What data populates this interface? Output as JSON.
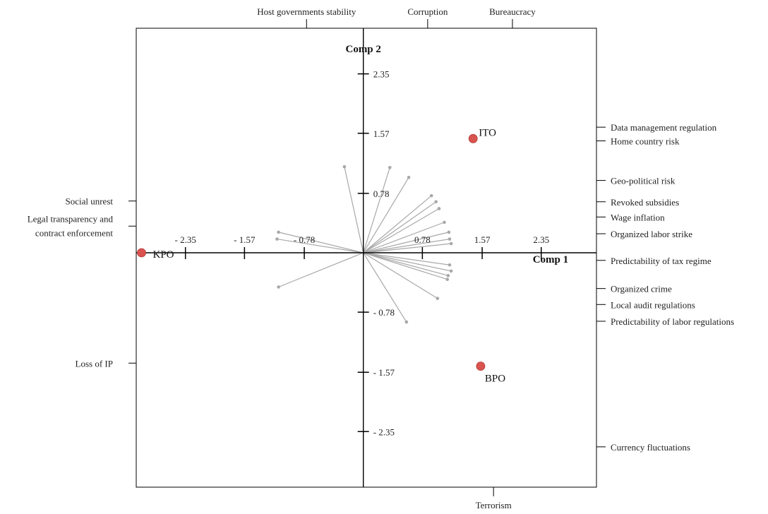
{
  "chart_data": {
    "type": "scatter",
    "xlabel": "Comp 1",
    "ylabel": "Comp 2",
    "xlim": [
      -3.0,
      3.08
    ],
    "ylim": [
      -3.08,
      2.95
    ],
    "x_ticks": [
      {
        "value": -2.35,
        "label": "- 2.35"
      },
      {
        "value": -1.57,
        "label": "- 1.57"
      },
      {
        "value": -0.78,
        "label": "- 0.78"
      },
      {
        "value": 0.78,
        "label": "0.78"
      },
      {
        "value": 1.57,
        "label": "1.57"
      },
      {
        "value": 2.35,
        "label": "2.35"
      }
    ],
    "y_ticks": [
      {
        "value": 2.35,
        "label": "2.35"
      },
      {
        "value": 1.57,
        "label": "1.57"
      },
      {
        "value": 0.78,
        "label": "0.78"
      },
      {
        "value": -0.78,
        "label": "- 0.78"
      },
      {
        "value": -1.57,
        "label": "- 1.57"
      },
      {
        "value": -2.35,
        "label": "- 2.35"
      }
    ],
    "points": [
      {
        "label": "ITO",
        "x": 1.45,
        "y": 1.5,
        "color": "#d9534f"
      },
      {
        "label": "KPO",
        "x": -2.93,
        "y": 0.0,
        "color": "#d9534f"
      },
      {
        "label": "BPO",
        "x": 1.55,
        "y": -1.49,
        "color": "#d9534f"
      }
    ],
    "vectors": [
      {
        "x": -0.25,
        "y": 1.13
      },
      {
        "x": 0.35,
        "y": 1.12
      },
      {
        "x": 0.6,
        "y": 0.99
      },
      {
        "x": 0.9,
        "y": 0.75
      },
      {
        "x": 0.96,
        "y": 0.67
      },
      {
        "x": 1.0,
        "y": 0.58
      },
      {
        "x": 1.07,
        "y": 0.4
      },
      {
        "x": 1.13,
        "y": 0.27
      },
      {
        "x": 1.14,
        "y": 0.18
      },
      {
        "x": 1.16,
        "y": 0.12
      },
      {
        "x": -1.12,
        "y": 0.27
      },
      {
        "x": -1.14,
        "y": 0.18
      },
      {
        "x": -1.12,
        "y": -0.45
      },
      {
        "x": 1.14,
        "y": -0.16
      },
      {
        "x": 1.16,
        "y": -0.24
      },
      {
        "x": 1.12,
        "y": -0.3
      },
      {
        "x": 1.11,
        "y": -0.35
      },
      {
        "x": 0.98,
        "y": -0.6
      },
      {
        "x": 0.57,
        "y": -0.91
      }
    ],
    "vector_color": "#a8a8a8",
    "axis_color": "#000000",
    "left_factors": [
      {
        "label": "Social unrest",
        "y": 0.68
      },
      {
        "label": "Legal transparency and",
        "label2": "contract enforcement",
        "y": 0.35
      },
      {
        "label": "Loss of IP",
        "y": -1.45
      }
    ],
    "right_factors": [
      {
        "label": "Data management regulation",
        "y": 1.65
      },
      {
        "label": "Home country risk",
        "y": 1.47
      },
      {
        "label": "Geo-political risk",
        "y": 0.95
      },
      {
        "label": "Revoked subsidies",
        "y": 0.67
      },
      {
        "label": "Wage inflation",
        "y": 0.47
      },
      {
        "label": "Organized labor strike",
        "y": 0.25
      },
      {
        "label": "Predictability of tax regime",
        "y": -0.1
      },
      {
        "label": "Organized crime",
        "y": -0.47
      },
      {
        "label": "Local audit regulations",
        "y": -0.68
      },
      {
        "label": "Predictability of labor regulations",
        "y": -0.9
      },
      {
        "label": "Currency fluctuations",
        "y": -2.55
      }
    ],
    "top_factors": [
      {
        "label": "Host governments stability",
        "x": -0.75
      },
      {
        "label": "Corruption",
        "x": 0.85
      },
      {
        "label": "Bureaucracy",
        "x": 1.97
      }
    ],
    "bottom_factors": [
      {
        "label": "Terrorism",
        "x": 1.72
      }
    ]
  }
}
